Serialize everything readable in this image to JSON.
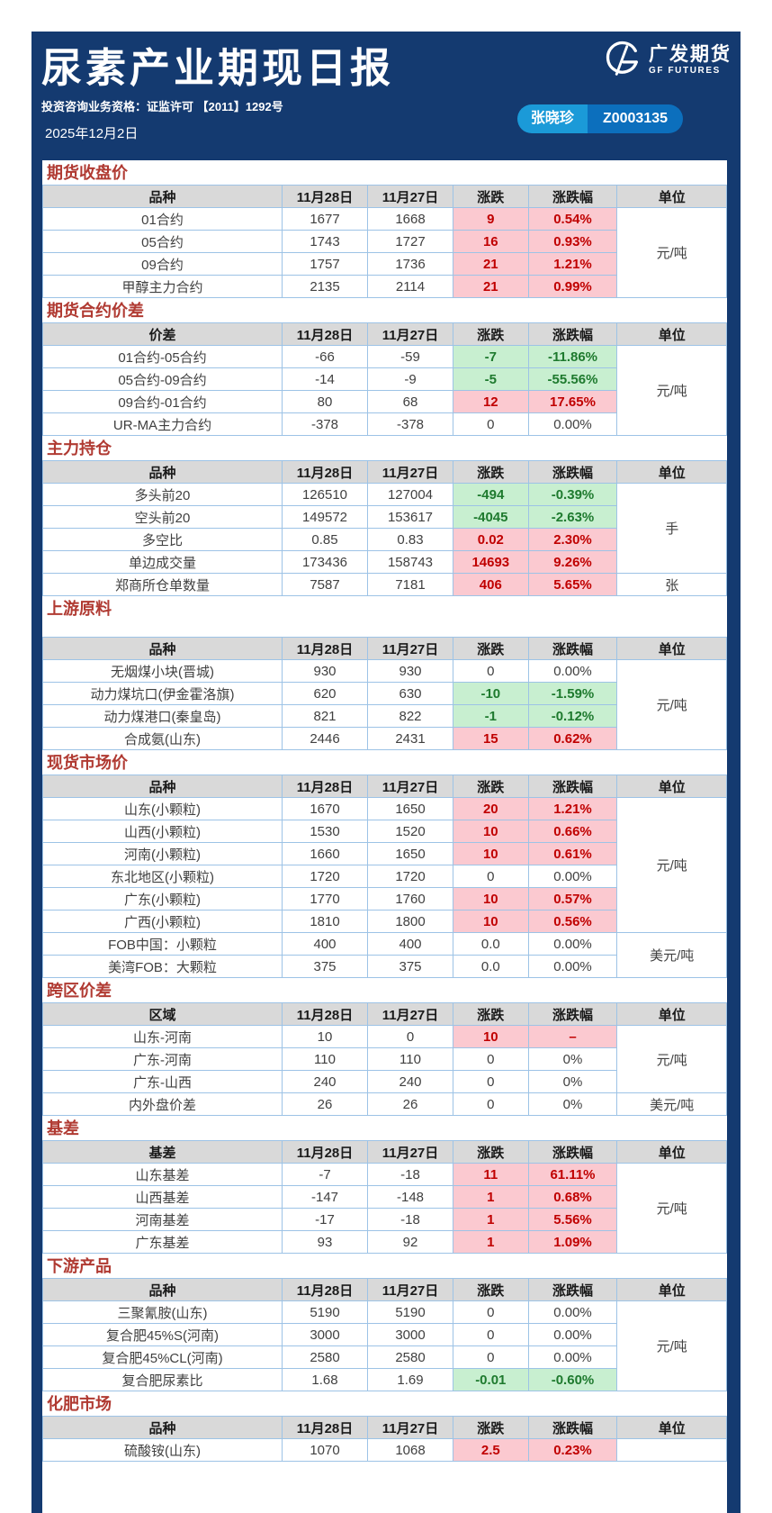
{
  "header": {
    "title": "尿素产业期现日报",
    "license": "投资咨询业务资格：证监许可 【2011】1292号",
    "date": "2025年12月2日",
    "brand": {
      "cn": "广发期货",
      "en": "GF FUTURES"
    },
    "analyst": {
      "name": "张晓珍",
      "id": "Z0003135"
    }
  },
  "columns": [
    "11月28日",
    "11月27日",
    "涨跌",
    "涨跌幅",
    "单位"
  ],
  "sections": [
    {
      "title": "期货收盘价",
      "label_header": "品种",
      "gap_after_title": false,
      "rows": [
        [
          "01合约",
          "1677",
          "1668",
          "9",
          "0.54%",
          "up"
        ],
        [
          "05合约",
          "1743",
          "1727",
          "16",
          "0.93%",
          "up"
        ],
        [
          "09合约",
          "1757",
          "1736",
          "21",
          "1.21%",
          "up"
        ],
        [
          "甲醇主力合约",
          "2135",
          "2114",
          "21",
          "0.99%",
          "up"
        ]
      ],
      "units": [
        {
          "text": "元/吨",
          "span": 4
        }
      ]
    },
    {
      "title": "期货合约价差",
      "label_header": "价差",
      "gap_after_title": false,
      "rows": [
        [
          "01合约-05合约",
          "-66",
          "-59",
          "-7",
          "-11.86%",
          "down"
        ],
        [
          "05合约-09合约",
          "-14",
          "-9",
          "-5",
          "-55.56%",
          "down"
        ],
        [
          "09合约-01合约",
          "80",
          "68",
          "12",
          "17.65%",
          "up"
        ],
        [
          "UR-MA主力合约",
          "-378",
          "-378",
          "0",
          "0.00%",
          "flat"
        ]
      ],
      "units": [
        {
          "text": "元/吨",
          "span": 4
        }
      ]
    },
    {
      "title": "主力持仓",
      "label_header": "品种",
      "gap_after_title": false,
      "rows": [
        [
          "多头前20",
          "126510",
          "127004",
          "-494",
          "-0.39%",
          "down"
        ],
        [
          "空头前20",
          "149572",
          "153617",
          "-4045",
          "-2.63%",
          "down"
        ],
        [
          "多空比",
          "0.85",
          "0.83",
          "0.02",
          "2.30%",
          "up"
        ],
        [
          "单边成交量",
          "173436",
          "158743",
          "14693",
          "9.26%",
          "up"
        ],
        [
          "郑商所仓单数量",
          "7587",
          "7181",
          "406",
          "5.65%",
          "up"
        ]
      ],
      "units": [
        {
          "text": "手",
          "span": 4
        },
        {
          "text": "张",
          "span": 1
        }
      ]
    },
    {
      "title": "上游原料",
      "label_header": "品种",
      "gap_after_title": true,
      "rows": [
        [
          "无烟煤小块(晋城)",
          "930",
          "930",
          "0",
          "0.00%",
          "flat"
        ],
        [
          "动力煤坑口(伊金霍洛旗)",
          "620",
          "630",
          "-10",
          "-1.59%",
          "down"
        ],
        [
          "动力煤港口(秦皇岛)",
          "821",
          "822",
          "-1",
          "-0.12%",
          "down"
        ],
        [
          "合成氨(山东)",
          "2446",
          "2431",
          "15",
          "0.62%",
          "up"
        ]
      ],
      "units": [
        {
          "text": "元/吨",
          "span": 4
        }
      ]
    },
    {
      "title": "现货市场价",
      "label_header": "品种",
      "gap_after_title": false,
      "rows": [
        [
          "山东(小颗粒)",
          "1670",
          "1650",
          "20",
          "1.21%",
          "up"
        ],
        [
          "山西(小颗粒)",
          "1530",
          "1520",
          "10",
          "0.66%",
          "up"
        ],
        [
          "河南(小颗粒)",
          "1660",
          "1650",
          "10",
          "0.61%",
          "up"
        ],
        [
          "东北地区(小颗粒)",
          "1720",
          "1720",
          "0",
          "0.00%",
          "flat"
        ],
        [
          "广东(小颗粒)",
          "1770",
          "1760",
          "10",
          "0.57%",
          "up"
        ],
        [
          "广西(小颗粒)",
          "1810",
          "1800",
          "10",
          "0.56%",
          "up"
        ],
        [
          "FOB中国：小颗粒",
          "400",
          "400",
          "0.0",
          "0.00%",
          "flat"
        ],
        [
          "美湾FOB：大颗粒",
          "375",
          "375",
          "0.0",
          "0.00%",
          "flat"
        ]
      ],
      "units": [
        {
          "text": "元/吨",
          "span": 6
        },
        {
          "text": "美元/吨",
          "span": 2
        }
      ]
    },
    {
      "title": "跨区价差",
      "label_header": "区域",
      "gap_after_title": false,
      "rows": [
        [
          "山东-河南",
          "10",
          "0",
          "10",
          "–",
          "up"
        ],
        [
          "广东-河南",
          "110",
          "110",
          "0",
          "0%",
          "flat"
        ],
        [
          "广东-山西",
          "240",
          "240",
          "0",
          "0%",
          "flat"
        ],
        [
          "内外盘价差",
          "26",
          "26",
          "0",
          "0%",
          "flat"
        ]
      ],
      "units": [
        {
          "text": "元/吨",
          "span": 3
        },
        {
          "text": "美元/吨",
          "span": 1
        }
      ]
    },
    {
      "title": "基差",
      "label_header": "基差",
      "gap_after_title": false,
      "rows": [
        [
          "山东基差",
          "-7",
          "-18",
          "11",
          "61.11%",
          "up"
        ],
        [
          "山西基差",
          "-147",
          "-148",
          "1",
          "0.68%",
          "up"
        ],
        [
          "河南基差",
          "-17",
          "-18",
          "1",
          "5.56%",
          "up"
        ],
        [
          "广东基差",
          "93",
          "92",
          "1",
          "1.09%",
          "up"
        ]
      ],
      "units": [
        {
          "text": "元/吨",
          "span": 4
        }
      ]
    },
    {
      "title": "下游产品",
      "label_header": "品种",
      "gap_after_title": false,
      "rows": [
        [
          "三聚氰胺(山东)",
          "5190",
          "5190",
          "0",
          "0.00%",
          "flat"
        ],
        [
          "复合肥45%S(河南)",
          "3000",
          "3000",
          "0",
          "0.00%",
          "flat"
        ],
        [
          "复合肥45%CL(河南)",
          "2580",
          "2580",
          "0",
          "0.00%",
          "flat"
        ],
        [
          "复合肥尿素比",
          "1.68",
          "1.69",
          "-0.01",
          "-0.60%",
          "down"
        ]
      ],
      "units": [
        {
          "text": "元/吨",
          "span": 4
        }
      ]
    },
    {
      "title": "化肥市场",
      "label_header": "品种",
      "gap_after_title": false,
      "rows": [
        [
          "硫酸铵(山东)",
          "1070",
          "1068",
          "2.5",
          "0.23%",
          "up"
        ]
      ],
      "units": [
        {
          "text": "",
          "span": 1
        }
      ]
    }
  ],
  "colors": {
    "navy": "#143A70",
    "section_title": "#B03A32",
    "table_header_bg": "#D9D9D9",
    "table_border": "#9DC3E6",
    "up_bg": "#FBC9D0",
    "up_text": "#C00000",
    "down_bg": "#C8EFD0",
    "down_text": "#1E7A2E",
    "badge_left_bg": "#1B9AD8",
    "badge_right_bg": "#0C6FBD",
    "text": "#404040"
  }
}
